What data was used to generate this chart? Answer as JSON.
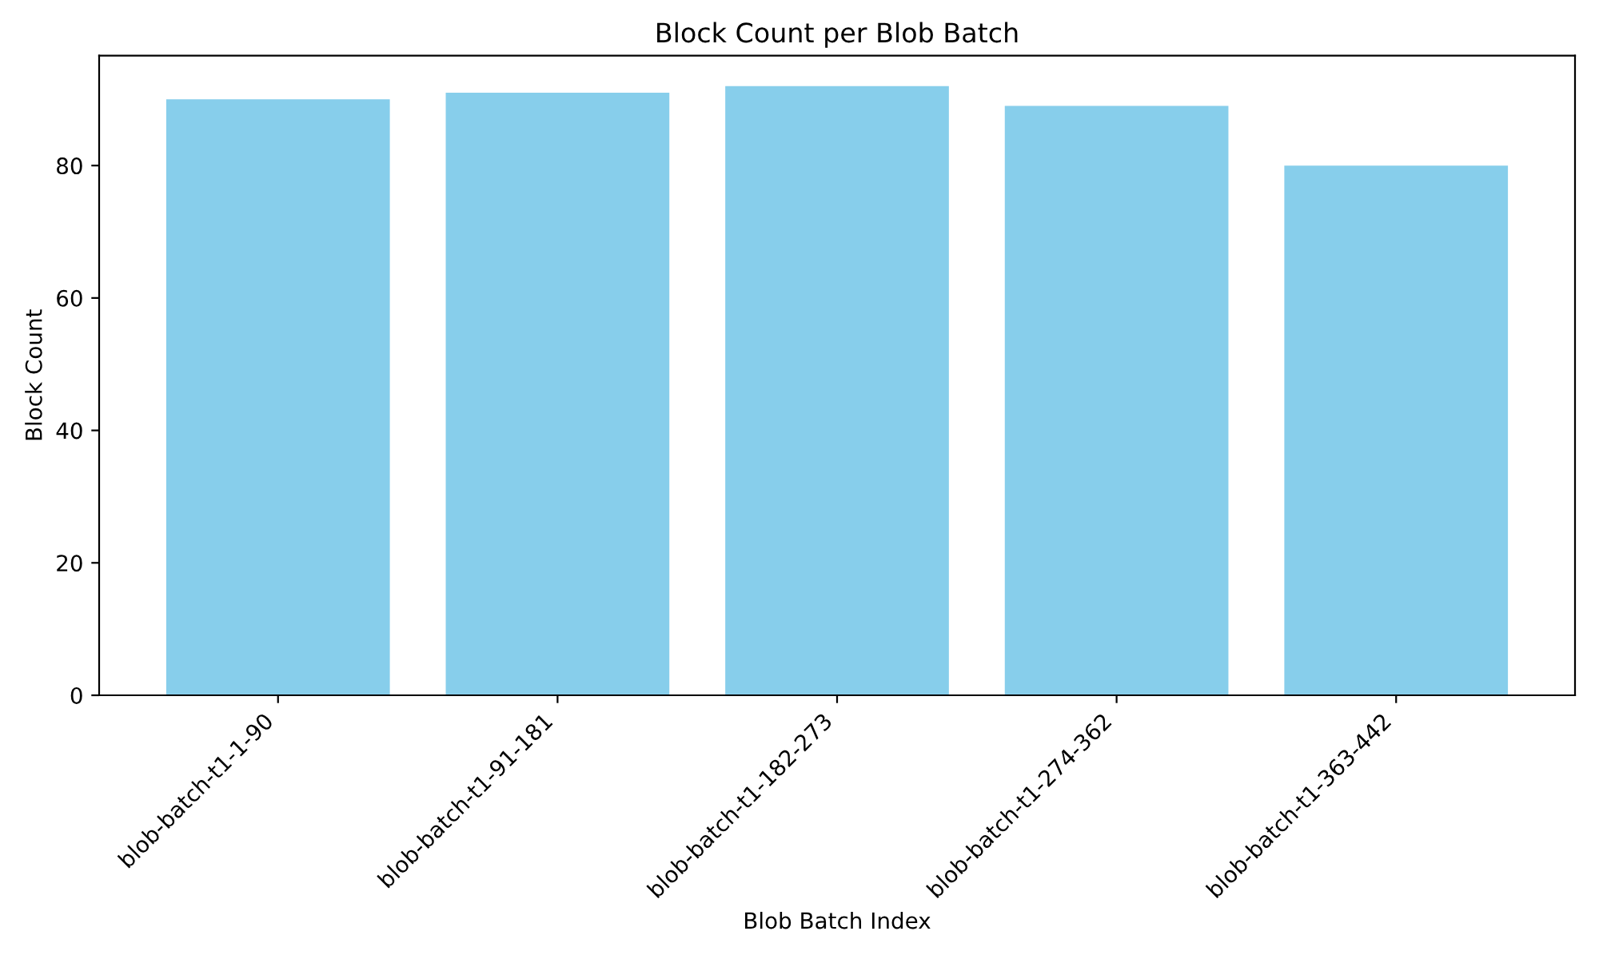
{
  "chart_data": {
    "type": "bar",
    "title": "Block Count per Blob Batch",
    "xlabel": "Blob Batch Index",
    "ylabel": "Block Count",
    "categories": [
      "blob-batch-t1-1-90",
      "blob-batch-t1-91-181",
      "blob-batch-t1-182-273",
      "blob-batch-t1-274-362",
      "blob-batch-t1-363-442"
    ],
    "values": [
      90,
      91,
      92,
      89,
      80
    ],
    "color": "#87ceeb",
    "ylim": [
      0,
      96.6
    ],
    "yticks": [
      0,
      20,
      40,
      60,
      80
    ],
    "grid": false,
    "legend": false
  }
}
